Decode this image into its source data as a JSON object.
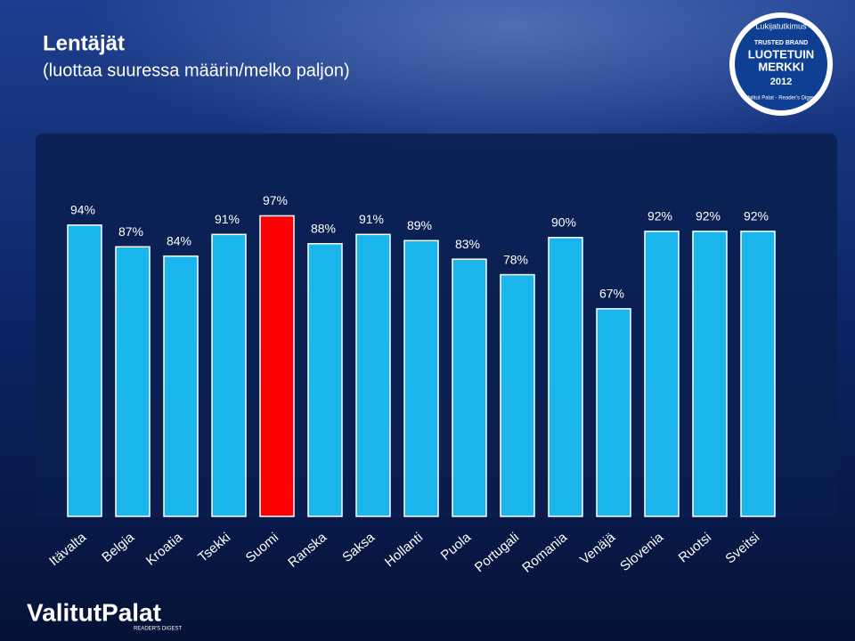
{
  "chart_data": {
    "type": "bar",
    "title": "Lentäjät",
    "subtitle": "(luottaa suuressa määrin/melko paljon)",
    "categories": [
      "Itävalta",
      "Belgia",
      "Kroatia",
      "Tsekki",
      "Suomi",
      "Ranska",
      "Saksa",
      "Hollanti",
      "Puola",
      "Portugali",
      "Romania",
      "Venäjä",
      "Slovenia",
      "Ruotsi",
      "Sveitsi"
    ],
    "values": [
      94,
      87,
      84,
      91,
      97,
      88,
      91,
      89,
      83,
      78,
      90,
      67,
      92,
      92,
      92
    ],
    "value_labels": [
      "94%",
      "87%",
      "84%",
      "91%",
      "97%",
      "88%",
      "91%",
      "89%",
      "83%",
      "78%",
      "90%",
      "67%",
      "92%",
      "92%",
      "92%"
    ],
    "colors": [
      "#19b5ec",
      "#19b5ec",
      "#19b5ec",
      "#19b5ec",
      "#ff0000",
      "#19b5ec",
      "#19b5ec",
      "#19b5ec",
      "#19b5ec",
      "#19b5ec",
      "#19b5ec",
      "#19b5ec",
      "#19b5ec",
      "#19b5ec",
      "#19b5ec"
    ],
    "ylim": [
      0,
      100
    ]
  },
  "badge": {
    "top": "Lukijatutkimus",
    "brand": "TRUSTED BRAND",
    "line1": "LUOTETUIN",
    "line2": "MERKKI",
    "year": "2012",
    "ring": "Valitut Palat - Reader's Digest"
  },
  "logo": {
    "name": "ValitutPalat",
    "sub": "READER'S DIGEST"
  }
}
